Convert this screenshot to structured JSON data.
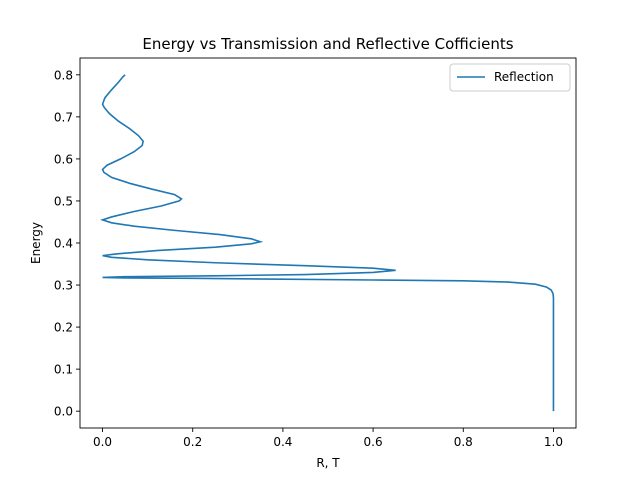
{
  "chart_data": {
    "type": "line",
    "title": "Energy vs Transmission and Reflective Cofficients",
    "xlabel": "R, T",
    "ylabel": "Energy",
    "xlim": [
      -0.05,
      1.05
    ],
    "ylim": [
      -0.04,
      0.84
    ],
    "xticks": [
      0.0,
      0.2,
      0.4,
      0.6,
      0.8,
      1.0
    ],
    "xtick_labels": [
      "0.0",
      "0.2",
      "0.4",
      "0.6",
      "0.8",
      "1.0"
    ],
    "yticks": [
      0.0,
      0.1,
      0.2,
      0.3,
      0.4,
      0.5,
      0.6,
      0.7,
      0.8
    ],
    "ytick_labels": [
      "0.0",
      "0.1",
      "0.2",
      "0.3",
      "0.4",
      "0.5",
      "0.6",
      "0.7",
      "0.8"
    ],
    "grid": false,
    "legend_position": "top-right",
    "series": [
      {
        "name": "Reflection",
        "color": "#1f77b4",
        "points": [
          [
            1.0,
            0.0
          ],
          [
            1.0,
            0.05
          ],
          [
            1.0,
            0.1
          ],
          [
            1.0,
            0.15
          ],
          [
            1.0,
            0.2
          ],
          [
            1.0,
            0.25
          ],
          [
            1.0,
            0.27
          ],
          [
            0.999,
            0.28
          ],
          [
            0.995,
            0.288
          ],
          [
            0.985,
            0.295
          ],
          [
            0.96,
            0.302
          ],
          [
            0.9,
            0.307
          ],
          [
            0.8,
            0.31
          ],
          [
            0.6,
            0.312
          ],
          [
            0.4,
            0.314
          ],
          [
            0.2,
            0.316
          ],
          [
            0.05,
            0.317
          ],
          [
            0.0,
            0.318
          ],
          [
            0.05,
            0.32
          ],
          [
            0.25,
            0.322
          ],
          [
            0.45,
            0.325
          ],
          [
            0.6,
            0.33
          ],
          [
            0.65,
            0.335
          ],
          [
            0.6,
            0.34
          ],
          [
            0.45,
            0.346
          ],
          [
            0.25,
            0.353
          ],
          [
            0.1,
            0.36
          ],
          [
            0.02,
            0.366
          ],
          [
            0.0,
            0.37
          ],
          [
            0.03,
            0.374
          ],
          [
            0.12,
            0.382
          ],
          [
            0.25,
            0.39
          ],
          [
            0.33,
            0.398
          ],
          [
            0.35,
            0.403
          ],
          [
            0.33,
            0.41
          ],
          [
            0.26,
            0.42
          ],
          [
            0.16,
            0.43
          ],
          [
            0.07,
            0.44
          ],
          [
            0.02,
            0.448
          ],
          [
            0.0,
            0.455
          ],
          [
            0.02,
            0.462
          ],
          [
            0.07,
            0.475
          ],
          [
            0.13,
            0.488
          ],
          [
            0.17,
            0.5
          ],
          [
            0.175,
            0.505
          ],
          [
            0.16,
            0.515
          ],
          [
            0.11,
            0.528
          ],
          [
            0.06,
            0.542
          ],
          [
            0.02,
            0.556
          ],
          [
            0.003,
            0.568
          ],
          [
            0.0,
            0.575
          ],
          [
            0.01,
            0.585
          ],
          [
            0.04,
            0.6
          ],
          [
            0.07,
            0.617
          ],
          [
            0.088,
            0.632
          ],
          [
            0.09,
            0.642
          ],
          [
            0.08,
            0.655
          ],
          [
            0.06,
            0.672
          ],
          [
            0.035,
            0.69
          ],
          [
            0.015,
            0.708
          ],
          [
            0.004,
            0.722
          ],
          [
            0.0,
            0.73
          ],
          [
            0.005,
            0.745
          ],
          [
            0.018,
            0.762
          ],
          [
            0.035,
            0.782
          ],
          [
            0.045,
            0.795
          ],
          [
            0.05,
            0.8
          ]
        ]
      }
    ]
  }
}
